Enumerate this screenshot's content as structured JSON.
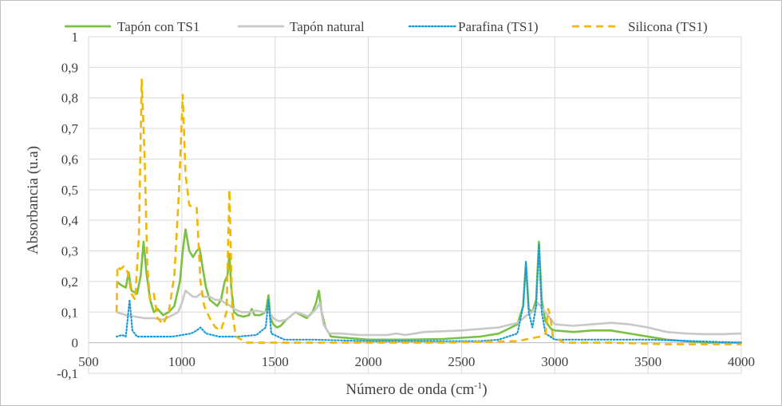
{
  "chart_data": {
    "type": "line",
    "title": "",
    "xlabel": "Número de onda (cm",
    "xlabel_sup": "-1",
    "xlabel_close": ")",
    "ylabel": "Absorbancia (u.a)",
    "xlim": [
      500,
      4000
    ],
    "ylim": [
      -0.1,
      1
    ],
    "xticks": [
      500,
      1000,
      1500,
      2000,
      2500,
      3000,
      3500,
      4000
    ],
    "xtick_labels": [
      "500",
      "1000",
      "1500",
      "2000",
      "2500",
      "3000",
      "3500",
      "4000"
    ],
    "yticks": [
      -0.1,
      0,
      0.1,
      0.2,
      0.3,
      0.4,
      0.5,
      0.6,
      0.7,
      0.8,
      0.9,
      1
    ],
    "ytick_labels": [
      "-0,1",
      "0",
      "0,1",
      "0,2",
      "0,3",
      "0,4",
      "0,5",
      "0,6",
      "0,7",
      "0,8",
      "0,9",
      "1"
    ],
    "grid": true,
    "legend_position": "top",
    "series": [
      {
        "name": "Tapón con TS1",
        "color": "#7ac143",
        "style": "solid",
        "points": [
          [
            650,
            0.2
          ],
          [
            670,
            0.19
          ],
          [
            700,
            0.18
          ],
          [
            715,
            0.23
          ],
          [
            730,
            0.17
          ],
          [
            760,
            0.16
          ],
          [
            780,
            0.22
          ],
          [
            795,
            0.33
          ],
          [
            810,
            0.23
          ],
          [
            830,
            0.14
          ],
          [
            850,
            0.1
          ],
          [
            870,
            0.11
          ],
          [
            900,
            0.09
          ],
          [
            930,
            0.1
          ],
          [
            960,
            0.12
          ],
          [
            990,
            0.2
          ],
          [
            1005,
            0.3
          ],
          [
            1020,
            0.37
          ],
          [
            1040,
            0.3
          ],
          [
            1060,
            0.28
          ],
          [
            1080,
            0.3
          ],
          [
            1095,
            0.31
          ],
          [
            1110,
            0.25
          ],
          [
            1130,
            0.18
          ],
          [
            1150,
            0.14
          ],
          [
            1170,
            0.13
          ],
          [
            1190,
            0.12
          ],
          [
            1210,
            0.14
          ],
          [
            1230,
            0.2
          ],
          [
            1245,
            0.22
          ],
          [
            1255,
            0.29
          ],
          [
            1265,
            0.18
          ],
          [
            1280,
            0.1
          ],
          [
            1300,
            0.09
          ],
          [
            1330,
            0.085
          ],
          [
            1360,
            0.09
          ],
          [
            1375,
            0.11
          ],
          [
            1390,
            0.09
          ],
          [
            1420,
            0.09
          ],
          [
            1450,
            0.1
          ],
          [
            1465,
            0.155
          ],
          [
            1475,
            0.08
          ],
          [
            1490,
            0.06
          ],
          [
            1510,
            0.05
          ],
          [
            1530,
            0.055
          ],
          [
            1560,
            0.075
          ],
          [
            1590,
            0.09
          ],
          [
            1610,
            0.1
          ],
          [
            1640,
            0.09
          ],
          [
            1670,
            0.08
          ],
          [
            1700,
            0.1
          ],
          [
            1720,
            0.13
          ],
          [
            1735,
            0.17
          ],
          [
            1750,
            0.1
          ],
          [
            1770,
            0.05
          ],
          [
            1800,
            0.02
          ],
          [
            1900,
            0.015
          ],
          [
            2000,
            0.01
          ],
          [
            2200,
            0.01
          ],
          [
            2400,
            0.012
          ],
          [
            2600,
            0.02
          ],
          [
            2700,
            0.03
          ],
          [
            2800,
            0.06
          ],
          [
            2830,
            0.12
          ],
          [
            2845,
            0.26
          ],
          [
            2860,
            0.11
          ],
          [
            2880,
            0.1
          ],
          [
            2900,
            0.14
          ],
          [
            2915,
            0.33
          ],
          [
            2930,
            0.14
          ],
          [
            2950,
            0.07
          ],
          [
            2980,
            0.045
          ],
          [
            3000,
            0.04
          ],
          [
            3100,
            0.035
          ],
          [
            3200,
            0.04
          ],
          [
            3300,
            0.04
          ],
          [
            3400,
            0.03
          ],
          [
            3500,
            0.02
          ],
          [
            3600,
            0.01
          ],
          [
            3700,
            0.005
          ],
          [
            3800,
            0.0
          ],
          [
            3900,
            0.0
          ],
          [
            4000,
            0.0
          ]
        ]
      },
      {
        "name": "Tapón natural",
        "color": "#c8c8c8",
        "style": "solid",
        "points": [
          [
            650,
            0.1
          ],
          [
            700,
            0.09
          ],
          [
            750,
            0.085
          ],
          [
            800,
            0.08
          ],
          [
            850,
            0.08
          ],
          [
            900,
            0.075
          ],
          [
            950,
            0.09
          ],
          [
            980,
            0.1
          ],
          [
            1000,
            0.13
          ],
          [
            1020,
            0.17
          ],
          [
            1040,
            0.16
          ],
          [
            1060,
            0.15
          ],
          [
            1080,
            0.15
          ],
          [
            1100,
            0.16
          ],
          [
            1120,
            0.15
          ],
          [
            1150,
            0.15
          ],
          [
            1180,
            0.14
          ],
          [
            1210,
            0.14
          ],
          [
            1230,
            0.13
          ],
          [
            1260,
            0.12
          ],
          [
            1280,
            0.11
          ],
          [
            1320,
            0.1
          ],
          [
            1360,
            0.1
          ],
          [
            1400,
            0.105
          ],
          [
            1440,
            0.1
          ],
          [
            1470,
            0.1
          ],
          [
            1490,
            0.08
          ],
          [
            1520,
            0.07
          ],
          [
            1560,
            0.075
          ],
          [
            1590,
            0.09
          ],
          [
            1610,
            0.1
          ],
          [
            1640,
            0.095
          ],
          [
            1680,
            0.085
          ],
          [
            1720,
            0.11
          ],
          [
            1740,
            0.13
          ],
          [
            1760,
            0.06
          ],
          [
            1790,
            0.03
          ],
          [
            1850,
            0.03
          ],
          [
            1950,
            0.025
          ],
          [
            2100,
            0.025
          ],
          [
            2150,
            0.03
          ],
          [
            2200,
            0.025
          ],
          [
            2300,
            0.035
          ],
          [
            2500,
            0.04
          ],
          [
            2700,
            0.05
          ],
          [
            2800,
            0.065
          ],
          [
            2850,
            0.09
          ],
          [
            2880,
            0.1
          ],
          [
            2910,
            0.13
          ],
          [
            2950,
            0.1
          ],
          [
            3000,
            0.06
          ],
          [
            3100,
            0.055
          ],
          [
            3200,
            0.06
          ],
          [
            3300,
            0.065
          ],
          [
            3400,
            0.06
          ],
          [
            3500,
            0.05
          ],
          [
            3600,
            0.035
          ],
          [
            3700,
            0.03
          ],
          [
            3800,
            0.028
          ],
          [
            3900,
            0.028
          ],
          [
            4000,
            0.03
          ]
        ]
      },
      {
        "name": "Parafina (TS1)",
        "color": "#1a9bd7",
        "style": "dotted",
        "points": [
          [
            650,
            0.02
          ],
          [
            680,
            0.025
          ],
          [
            700,
            0.02
          ],
          [
            720,
            0.14
          ],
          [
            735,
            0.04
          ],
          [
            760,
            0.02
          ],
          [
            850,
            0.02
          ],
          [
            950,
            0.02
          ],
          [
            1000,
            0.025
          ],
          [
            1050,
            0.03
          ],
          [
            1080,
            0.04
          ],
          [
            1100,
            0.05
          ],
          [
            1130,
            0.03
          ],
          [
            1200,
            0.02
          ],
          [
            1300,
            0.02
          ],
          [
            1400,
            0.025
          ],
          [
            1450,
            0.05
          ],
          [
            1465,
            0.14
          ],
          [
            1480,
            0.03
          ],
          [
            1550,
            0.01
          ],
          [
            1700,
            0.01
          ],
          [
            2000,
            0.005
          ],
          [
            2300,
            0.005
          ],
          [
            2600,
            0.005
          ],
          [
            2700,
            0.01
          ],
          [
            2800,
            0.03
          ],
          [
            2830,
            0.12
          ],
          [
            2845,
            0.265
          ],
          [
            2860,
            0.1
          ],
          [
            2880,
            0.05
          ],
          [
            2900,
            0.12
          ],
          [
            2915,
            0.32
          ],
          [
            2930,
            0.1
          ],
          [
            2950,
            0.03
          ],
          [
            3000,
            0.01
          ],
          [
            3500,
            0.01
          ],
          [
            4000,
            0.0
          ]
        ]
      },
      {
        "name": "Silicona (TS1)",
        "color": "#f2b705",
        "style": "dashed",
        "points": [
          [
            650,
            0.1
          ],
          [
            655,
            0.25
          ],
          [
            670,
            0.24
          ],
          [
            690,
            0.25
          ],
          [
            710,
            0.23
          ],
          [
            730,
            0.16
          ],
          [
            750,
            0.14
          ],
          [
            770,
            0.35
          ],
          [
            785,
            0.86
          ],
          [
            800,
            0.62
          ],
          [
            815,
            0.25
          ],
          [
            830,
            0.14
          ],
          [
            850,
            0.16
          ],
          [
            870,
            0.08
          ],
          [
            900,
            0.06
          ],
          [
            930,
            0.1
          ],
          [
            960,
            0.22
          ],
          [
            985,
            0.5
          ],
          [
            1005,
            0.81
          ],
          [
            1020,
            0.55
          ],
          [
            1040,
            0.45
          ],
          [
            1060,
            0.44
          ],
          [
            1080,
            0.44
          ],
          [
            1100,
            0.2
          ],
          [
            1120,
            0.12
          ],
          [
            1150,
            0.08
          ],
          [
            1180,
            0.05
          ],
          [
            1210,
            0.04
          ],
          [
            1240,
            0.1
          ],
          [
            1255,
            0.5
          ],
          [
            1270,
            0.1
          ],
          [
            1290,
            0.02
          ],
          [
            1350,
            0.0
          ],
          [
            1450,
            0.0
          ],
          [
            1600,
            0.0
          ],
          [
            1800,
            0.0
          ],
          [
            2000,
            0.0
          ],
          [
            2400,
            0.0
          ],
          [
            2800,
            0.005
          ],
          [
            2920,
            0.02
          ],
          [
            2950,
            0.03
          ],
          [
            2965,
            0.11
          ],
          [
            2975,
            0.09
          ],
          [
            2990,
            0.02
          ],
          [
            3050,
            0.0
          ],
          [
            3300,
            0.0
          ],
          [
            3600,
            -0.005
          ],
          [
            4000,
            -0.005
          ]
        ]
      }
    ]
  }
}
